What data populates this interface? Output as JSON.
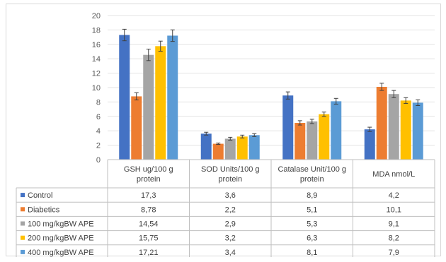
{
  "chart_data": {
    "type": "bar",
    "ylim": [
      0,
      20
    ],
    "yticks": [
      0,
      2,
      4,
      6,
      8,
      10,
      12,
      14,
      16,
      18,
      20
    ],
    "grid": true,
    "legend": "data-table",
    "categories": [
      "GSH ug/100 g protein",
      "SOD Units/100 g protein",
      "Catalase Unit/100 g protein",
      "MDA nmol/L"
    ],
    "series": [
      {
        "name": "Control",
        "color": "#4472c4",
        "values": [
          17.3,
          3.6,
          8.9,
          4.2
        ],
        "labels": [
          "17,3",
          "3,6",
          "8,9",
          "4,2"
        ],
        "errors": [
          0.8,
          0.2,
          0.5,
          0.3
        ]
      },
      {
        "name": "Diabetics",
        "color": "#ed7d31",
        "values": [
          8.78,
          2.2,
          5.1,
          10.1
        ],
        "labels": [
          "8,78",
          "2,2",
          "5,1",
          "10,1"
        ],
        "errors": [
          0.5,
          0.1,
          0.3,
          0.5
        ]
      },
      {
        "name": "100 mg/kgBW APE",
        "color": "#a5a5a5",
        "values": [
          14.54,
          2.9,
          5.3,
          9.1
        ],
        "labels": [
          "14,54",
          "2,9",
          "5,3",
          "9,1"
        ],
        "errors": [
          0.8,
          0.2,
          0.3,
          0.5
        ]
      },
      {
        "name": "200 mg/kgBW APE",
        "color": "#ffc000",
        "values": [
          15.75,
          3.2,
          6.3,
          8.2
        ],
        "labels": [
          "15,75",
          "3,2",
          "6,3",
          "8,2"
        ],
        "errors": [
          0.7,
          0.2,
          0.3,
          0.4
        ]
      },
      {
        "name": "400 mg/kgBW APE",
        "color": "#5b9bd5",
        "values": [
          17.21,
          3.4,
          8.1,
          7.9
        ],
        "labels": [
          "17,21",
          "3,4",
          "8,1",
          "7,9"
        ],
        "errors": [
          0.8,
          0.2,
          0.4,
          0.4
        ]
      }
    ]
  }
}
